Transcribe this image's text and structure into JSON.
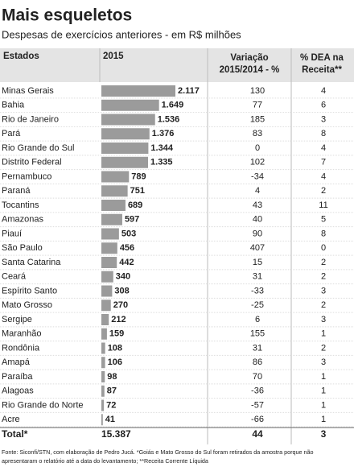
{
  "chart_data": {
    "type": "bar",
    "title": "Mais esqueletos",
    "subtitle": "Despesas de exercícios anteriores - em R$ milhões",
    "columns": [
      [
        "Estados"
      ],
      [
        "2015"
      ],
      [
        "Variação",
        "2015/2014 - %"
      ],
      [
        "% DEA na",
        "Receita**"
      ]
    ],
    "categories": [
      "Minas Gerais",
      "Bahia",
      "Rio de Janeiro",
      "Pará",
      "Rio Grande do Sul",
      "Distrito Federal",
      "Pernambuco",
      "Paraná",
      "Tocantins",
      "Amazonas",
      "Piauí",
      "São Paulo",
      "Santa Catarina",
      "Ceará",
      "Espírito Santo",
      "Mato Grosso",
      "Sergipe",
      "Maranhão",
      "Rondônia",
      "Amapá",
      "Paraíba",
      "Alagoas",
      "Rio Grande do Norte",
      "Acre"
    ],
    "values": [
      2117,
      1649,
      1536,
      1376,
      1344,
      1335,
      789,
      751,
      689,
      597,
      503,
      456,
      442,
      340,
      308,
      270,
      212,
      159,
      108,
      106,
      98,
      87,
      72,
      41
    ],
    "value_labels": [
      "2.117",
      "1.649",
      "1.536",
      "1.376",
      "1.344",
      "1.335",
      "789",
      "751",
      "689",
      "597",
      "503",
      "456",
      "442",
      "340",
      "308",
      "270",
      "212",
      "159",
      "108",
      "106",
      "98",
      "87",
      "72",
      "41"
    ],
    "color": "#9b9b9b",
    "variacao": [
      130,
      77,
      185,
      83,
      0,
      102,
      -34,
      4,
      43,
      40,
      90,
      407,
      15,
      31,
      -33,
      -25,
      6,
      155,
      31,
      86,
      70,
      -36,
      -57,
      -66
    ],
    "dea": [
      4,
      6,
      3,
      8,
      4,
      7,
      4,
      2,
      11,
      5,
      8,
      0,
      2,
      2,
      3,
      2,
      3,
      1,
      2,
      3,
      1,
      1,
      1,
      1
    ],
    "total": {
      "label": "Total*",
      "value": "15.387",
      "variacao": 44,
      "dea": 3
    },
    "footnote": [
      "Fonte: Siconfi/STN, com elaboração de Pedro Jucá. *Goiás e Mato Grosso do Sul foram retirados da amostra porque não",
      "apresentaram o relatório até a data do levantamento; **Receita Corrente Líquida"
    ]
  }
}
